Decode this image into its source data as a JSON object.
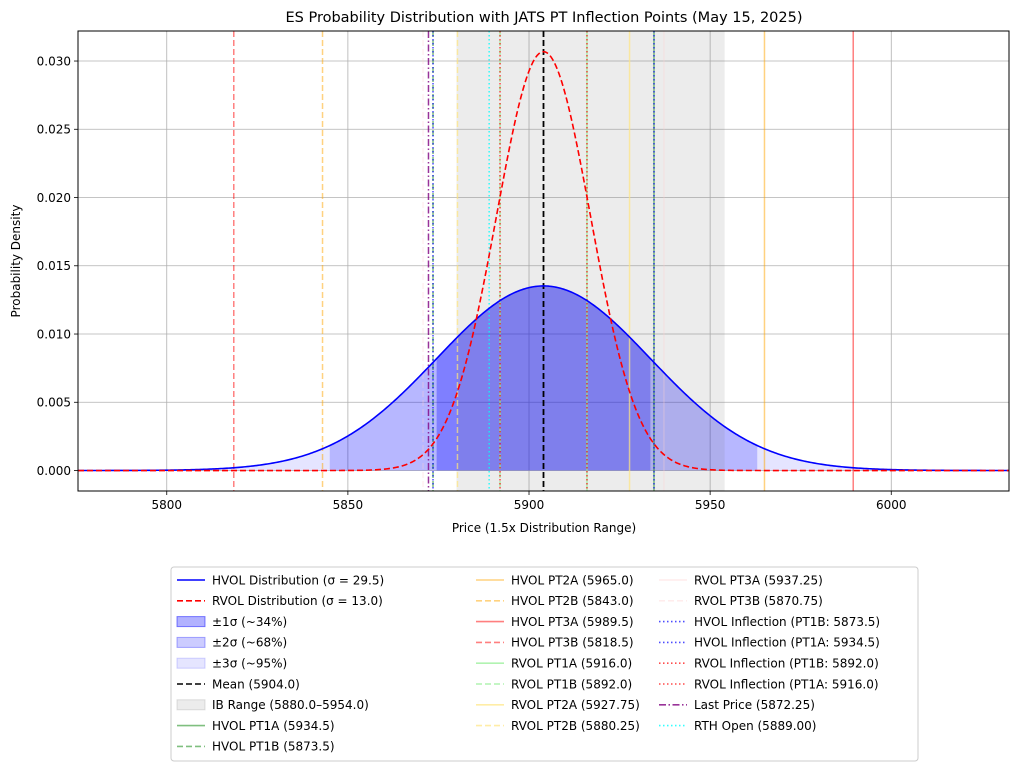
{
  "chart_data": {
    "type": "line",
    "title": "ES Probability Distribution with JATS PT Inflection Points (May 15, 2025)",
    "xlabel": "Price (1.5x Distribution Range)",
    "ylabel": "Probability Density",
    "xlim": [
      5775.5,
      6032.5
    ],
    "ylim": [
      -0.0015,
      0.0322
    ],
    "xticks": [
      5800,
      5850,
      5900,
      5950,
      6000
    ],
    "yticks": [
      0.0,
      0.005,
      0.01,
      0.015,
      0.02,
      0.025,
      0.03
    ],
    "xtick_labels": [
      "5800",
      "5850",
      "5900",
      "5950",
      "6000"
    ],
    "ytick_labels": [
      "0.000",
      "0.005",
      "0.010",
      "0.015",
      "0.020",
      "0.025",
      "0.030"
    ],
    "grid": true,
    "legend_position": "below plot",
    "mean": 5904.0,
    "series": [
      {
        "name": "HVOL Distribution (σ = 29.5)",
        "mu": 5904.0,
        "sigma": 29.5,
        "color": "#0000ff",
        "style": "solid"
      },
      {
        "name": "RVOL Distribution (σ = 13.0)",
        "mu": 5904.0,
        "sigma": 13.0,
        "color": "#ff0000",
        "style": "dashed"
      }
    ],
    "bands": [
      {
        "name": "±1σ (~34%)",
        "from": 5874.5,
        "to": 5933.5,
        "color": "#0000ff",
        "opacity": 0.3
      },
      {
        "name": "±2σ (~68%)",
        "from": 5845.0,
        "to": 5963.0,
        "color": "#0000ff",
        "opacity": 0.2
      },
      {
        "name": "±3σ (~95%)",
        "from": 5815.5,
        "to": 5992.5,
        "color": "#0000ff",
        "opacity": 0.1
      },
      {
        "name": "IB Range (5880.0–5954.0)",
        "from": 5880.0,
        "to": 5954.0,
        "color": "#808080",
        "opacity": 0.15
      }
    ],
    "vlines": [
      {
        "name": "Mean (5904.0)",
        "x": 5904.0,
        "color": "#000000",
        "style": "dashed",
        "opacity": 1,
        "width": 1.8
      },
      {
        "name": "HVOL PT1A (5934.5)",
        "x": 5934.5,
        "color": "#008000",
        "style": "solid",
        "opacity": 0.5
      },
      {
        "name": "HVOL PT1B (5873.5)",
        "x": 5873.5,
        "color": "#008000",
        "style": "dashed",
        "opacity": 0.5
      },
      {
        "name": "HVOL PT2A (5965.0)",
        "x": 5965.0,
        "color": "#ffa500",
        "style": "solid",
        "opacity": 0.5
      },
      {
        "name": "HVOL PT2B (5843.0)",
        "x": 5843.0,
        "color": "#ffa500",
        "style": "dashed",
        "opacity": 0.5
      },
      {
        "name": "HVOL PT3A (5989.5)",
        "x": 5989.5,
        "color": "#ff0000",
        "style": "solid",
        "opacity": 0.5
      },
      {
        "name": "HVOL PT3B (5818.5)",
        "x": 5818.5,
        "color": "#ff0000",
        "style": "dashed",
        "opacity": 0.5
      },
      {
        "name": "RVOL PT1A (5916.0)",
        "x": 5916.0,
        "color": "#90ee90",
        "style": "solid",
        "opacity": 0.7
      },
      {
        "name": "RVOL PT1B (5892.0)",
        "x": 5892.0,
        "color": "#90ee90",
        "style": "dashed",
        "opacity": 0.7
      },
      {
        "name": "RVOL PT2A (5927.75)",
        "x": 5927.75,
        "color": "#ffe680",
        "style": "solid",
        "opacity": 0.7
      },
      {
        "name": "RVOL PT2B (5880.25)",
        "x": 5880.25,
        "color": "#ffe680",
        "style": "dashed",
        "opacity": 0.7
      },
      {
        "name": "RVOL PT3A (5937.25)",
        "x": 5937.25,
        "color": "#ffd0d0",
        "style": "solid",
        "opacity": 0.3
      },
      {
        "name": "RVOL PT3B (5870.75)",
        "x": 5870.75,
        "color": "#ffd0d0",
        "style": "dashed",
        "opacity": 0.3
      },
      {
        "name": "HVOL Inflection (PT1B: 5873.5)",
        "x": 5873.5,
        "color": "#0000ff",
        "style": "dotted",
        "opacity": 0.7
      },
      {
        "name": "HVOL Inflection (PT1A: 5934.5)",
        "x": 5934.5,
        "color": "#0000ff",
        "style": "dotted",
        "opacity": 0.7
      },
      {
        "name": "RVOL Inflection (PT1B: 5892.0)",
        "x": 5892.0,
        "color": "#ff0000",
        "style": "dotted",
        "opacity": 0.7
      },
      {
        "name": "RVOL Inflection (PT1A: 5916.0)",
        "x": 5916.0,
        "color": "#ff0000",
        "style": "dotted",
        "opacity": 0.7
      },
      {
        "name": "Last Price (5872.25)",
        "x": 5872.25,
        "color": "#800080",
        "style": "dashdot",
        "opacity": 0.8
      },
      {
        "name": "RTH Open (5889.00)",
        "x": 5889.0,
        "color": "#00ffff",
        "style": "dotted",
        "opacity": 0.8
      }
    ],
    "legend": [
      {
        "label": "HVOL Distribution (σ = 29.5)",
        "kind": "line",
        "color": "#0000ff",
        "style": "solid",
        "opacity": 1
      },
      {
        "label": "RVOL Distribution (σ = 13.0)",
        "kind": "line",
        "color": "#ff0000",
        "style": "dashed",
        "opacity": 1
      },
      {
        "label": "±1σ (~34%)",
        "kind": "patch",
        "color": "#0000ff",
        "opacity": 0.3
      },
      {
        "label": "±2σ (~68%)",
        "kind": "patch",
        "color": "#0000ff",
        "opacity": 0.2
      },
      {
        "label": "±3σ (~95%)",
        "kind": "patch",
        "color": "#0000ff",
        "opacity": 0.1
      },
      {
        "label": "Mean (5904.0)",
        "kind": "line",
        "color": "#000000",
        "style": "dashed",
        "opacity": 1
      },
      {
        "label": "IB Range (5880.0–5954.0)",
        "kind": "patch",
        "color": "#808080",
        "opacity": 0.15
      },
      {
        "label": "HVOL PT1A (5934.5)",
        "kind": "line",
        "color": "#008000",
        "style": "solid",
        "opacity": 0.5
      },
      {
        "label": "HVOL PT1B (5873.5)",
        "kind": "line",
        "color": "#008000",
        "style": "dashed",
        "opacity": 0.5
      },
      {
        "label": "HVOL PT2A (5965.0)",
        "kind": "line",
        "color": "#ffa500",
        "style": "solid",
        "opacity": 0.5
      },
      {
        "label": "HVOL PT2B (5843.0)",
        "kind": "line",
        "color": "#ffa500",
        "style": "dashed",
        "opacity": 0.5
      },
      {
        "label": "HVOL PT3A (5989.5)",
        "kind": "line",
        "color": "#ff0000",
        "style": "solid",
        "opacity": 0.5
      },
      {
        "label": "HVOL PT3B (5818.5)",
        "kind": "line",
        "color": "#ff0000",
        "style": "dashed",
        "opacity": 0.5
      },
      {
        "label": "RVOL PT1A (5916.0)",
        "kind": "line",
        "color": "#90ee90",
        "style": "solid",
        "opacity": 0.7
      },
      {
        "label": "RVOL PT1B (5892.0)",
        "kind": "line",
        "color": "#90ee90",
        "style": "dashed",
        "opacity": 0.7
      },
      {
        "label": "RVOL PT2A (5927.75)",
        "kind": "line",
        "color": "#ffe680",
        "style": "solid",
        "opacity": 0.7
      },
      {
        "label": "RVOL PT2B (5880.25)",
        "kind": "line",
        "color": "#ffe680",
        "style": "dashed",
        "opacity": 0.7
      },
      {
        "label": "RVOL PT3A (5937.25)",
        "kind": "line",
        "color": "#ffd0d0",
        "style": "solid",
        "opacity": 0.4
      },
      {
        "label": "RVOL PT3B (5870.75)",
        "kind": "line",
        "color": "#ffd0d0",
        "style": "dashed",
        "opacity": 0.4
      },
      {
        "label": "HVOL Inflection (PT1B: 5873.5)",
        "kind": "line",
        "color": "#0000ff",
        "style": "dotted",
        "opacity": 0.7
      },
      {
        "label": "HVOL Inflection (PT1A: 5934.5)",
        "kind": "line",
        "color": "#0000ff",
        "style": "dotted",
        "opacity": 0.7
      },
      {
        "label": "RVOL Inflection (PT1B: 5892.0)",
        "kind": "line",
        "color": "#ff0000",
        "style": "dotted",
        "opacity": 0.7
      },
      {
        "label": "RVOL Inflection (PT1A: 5916.0)",
        "kind": "line",
        "color": "#ff0000",
        "style": "dotted",
        "opacity": 0.7
      },
      {
        "label": "Last Price (5872.25)",
        "kind": "line",
        "color": "#800080",
        "style": "dashdot",
        "opacity": 0.8
      },
      {
        "label": "RTH Open (5889.00)",
        "kind": "line",
        "color": "#00ffff",
        "style": "dotted",
        "opacity": 0.8
      }
    ]
  }
}
